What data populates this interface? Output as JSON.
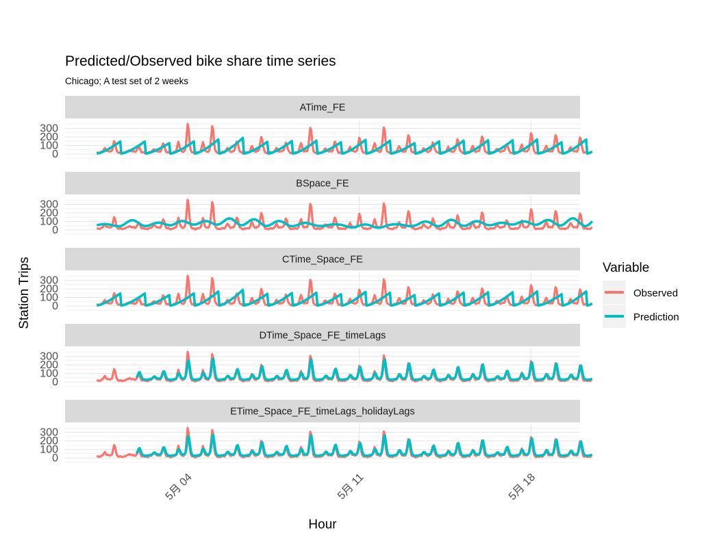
{
  "chart_data": {
    "type": "line",
    "title": "Predicted/Observed bike share time series",
    "subtitle": "Chicago; A test set of 2 weeks",
    "xlabel": "Hour",
    "ylabel": "Station Trips",
    "x_range": [
      "2018-04-29T00:00",
      "2018-05-20T00:00"
    ],
    "x_ticks": [
      {
        "label": "5月 04",
        "date": "2018-05-04"
      },
      {
        "label": "5月 11",
        "date": "2018-05-11"
      },
      {
        "label": "5月 18",
        "date": "2018-05-18"
      }
    ],
    "y_ticks": [
      0,
      100,
      200,
      300
    ],
    "ylim": [
      -40,
      400
    ],
    "grid": true,
    "legend": {
      "title": "Variable",
      "position": "right",
      "entries": [
        {
          "name": "Observed",
          "color": "#F8766D"
        },
        {
          "name": "Prediction",
          "color": "#00BFC4"
        }
      ]
    },
    "observed_daily_peaks": [
      120,
      60,
      100,
      330,
      310,
      130,
      180,
      110,
      290,
      120,
      160,
      290,
      200,
      110,
      150,
      190,
      90,
      220,
      200,
      170,
      320,
      250,
      360,
      320,
      130,
      220
    ],
    "panels": [
      {
        "name": "ATime_FE",
        "prediction_model": "time",
        "daily_peaks": [
          150,
          150,
          130,
          150,
          175,
          195,
          145,
          155,
          160,
          140,
          170,
          160,
          130,
          150,
          160,
          165,
          165,
          175,
          140,
          175,
          200,
          130,
          175,
          190,
          180,
          170
        ]
      },
      {
        "name": "BSpace_FE",
        "prediction_model": "space",
        "daily_peaks": [
          60,
          105,
          80,
          110,
          115,
          140,
          120,
          95,
          75,
          60,
          40,
          35,
          60,
          90,
          110,
          100,
          90,
          110,
          120,
          130,
          135,
          145,
          140,
          130,
          110,
          100
        ]
      },
      {
        "name": "CTime_Space_FE",
        "prediction_model": "time",
        "daily_peaks": [
          150,
          150,
          130,
          150,
          175,
          195,
          145,
          155,
          160,
          140,
          170,
          160,
          130,
          150,
          160,
          165,
          165,
          175,
          140,
          175,
          200,
          130,
          175,
          190,
          180,
          170
        ]
      },
      {
        "name": "DTime_Space_FE_timeLags",
        "prediction_model": "lags",
        "daily_peaks": [
          0,
          80,
          90,
          220,
          240,
          115,
          150,
          105,
          230,
          120,
          140,
          230,
          180,
          110,
          140,
          170,
          95,
          195,
          180,
          160,
          260,
          225,
          280,
          260,
          130,
          200
        ]
      },
      {
        "name": "ETime_Space_FE_timeLags_holidayLags",
        "prediction_model": "lags",
        "daily_peaks": [
          0,
          80,
          90,
          220,
          240,
          115,
          150,
          105,
          230,
          120,
          140,
          230,
          180,
          110,
          140,
          170,
          95,
          195,
          180,
          160,
          260,
          225,
          280,
          260,
          130,
          200
        ]
      }
    ]
  }
}
